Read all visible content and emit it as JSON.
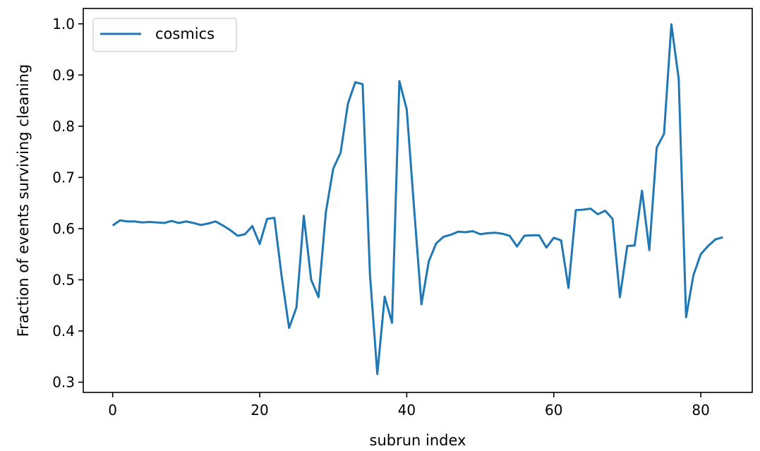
{
  "chart_data": {
    "type": "line",
    "title": "",
    "xlabel": "subrun index",
    "ylabel": "Fraction of events surviving cleaning",
    "xlim": [
      -4,
      87
    ],
    "ylim": [
      0.28,
      1.03
    ],
    "xticks": [
      0,
      20,
      40,
      60,
      80
    ],
    "xtick_labels": [
      "0",
      "20",
      "40",
      "60",
      "80"
    ],
    "yticks": [
      0.3,
      0.4,
      0.5,
      0.6,
      0.7,
      0.8,
      0.9,
      1.0
    ],
    "ytick_labels": [
      "0.3",
      "0.4",
      "0.5",
      "0.6",
      "0.7",
      "0.8",
      "0.9",
      "1.0"
    ],
    "grid": false,
    "legend": {
      "position": "upper-left"
    },
    "series": [
      {
        "name": "cosmics",
        "color": "#1f77b4",
        "x": [
          0,
          1,
          2,
          3,
          4,
          5,
          6,
          7,
          8,
          9,
          10,
          11,
          12,
          13,
          14,
          15,
          16,
          17,
          18,
          19,
          20,
          21,
          22,
          23,
          24,
          25,
          26,
          27,
          28,
          29,
          30,
          31,
          32,
          33,
          34,
          35,
          36,
          37,
          38,
          39,
          40,
          41,
          42,
          43,
          44,
          45,
          46,
          47,
          48,
          49,
          50,
          51,
          52,
          53,
          54,
          55,
          56,
          57,
          58,
          59,
          60,
          61,
          62,
          63,
          64,
          65,
          66,
          67,
          68,
          69,
          70,
          71,
          72,
          73,
          74,
          75,
          76,
          77,
          78,
          79,
          80,
          81,
          82,
          83
        ],
        "y": [
          0.606,
          0.616,
          0.614,
          0.614,
          0.612,
          0.613,
          0.612,
          0.611,
          0.615,
          0.611,
          0.614,
          0.611,
          0.607,
          0.61,
          0.614,
          0.606,
          0.597,
          0.586,
          0.589,
          0.605,
          0.57,
          0.619,
          0.621,
          0.505,
          0.406,
          0.446,
          0.625,
          0.5,
          0.466,
          0.632,
          0.717,
          0.748,
          0.844,
          0.886,
          0.882,
          0.51,
          0.316,
          0.467,
          0.416,
          0.888,
          0.833,
          0.64,
          0.452,
          0.536,
          0.571,
          0.584,
          0.588,
          0.594,
          0.593,
          0.595,
          0.589,
          0.591,
          0.592,
          0.59,
          0.586,
          0.565,
          0.586,
          0.587,
          0.587,
          0.563,
          0.582,
          0.577,
          0.484,
          0.636,
          0.637,
          0.639,
          0.628,
          0.635,
          0.619,
          0.466,
          0.566,
          0.567,
          0.674,
          0.558,
          0.758,
          0.785,
          0.999,
          0.892,
          0.427,
          0.509,
          0.55,
          0.566,
          0.579,
          0.583
        ]
      }
    ]
  }
}
